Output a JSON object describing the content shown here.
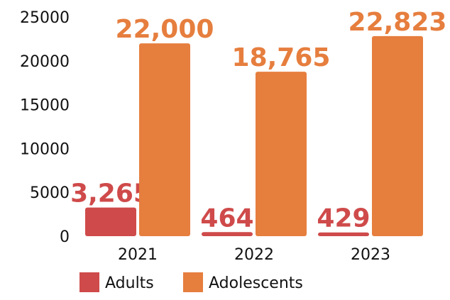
{
  "chart_data": {
    "type": "bar",
    "categories": [
      "2021",
      "2022",
      "2023"
    ],
    "series": [
      {
        "name": "Adults",
        "values": [
          3265,
          464,
          429
        ],
        "labels": [
          "3,265",
          "464",
          "429"
        ],
        "color": "#cf4a4a"
      },
      {
        "name": "Adolescents",
        "values": [
          22000,
          18765,
          22823
        ],
        "labels": [
          "22,000",
          "18,765",
          "22,823"
        ],
        "color": "#e67e3e"
      }
    ],
    "yticks": [
      "0",
      "5000",
      "10000",
      "15000",
      "20000",
      "25000"
    ],
    "ylim": [
      0,
      25000
    ],
    "grid": false,
    "legend_position": "bottom",
    "title": "",
    "xlabel": "",
    "ylabel": ""
  }
}
